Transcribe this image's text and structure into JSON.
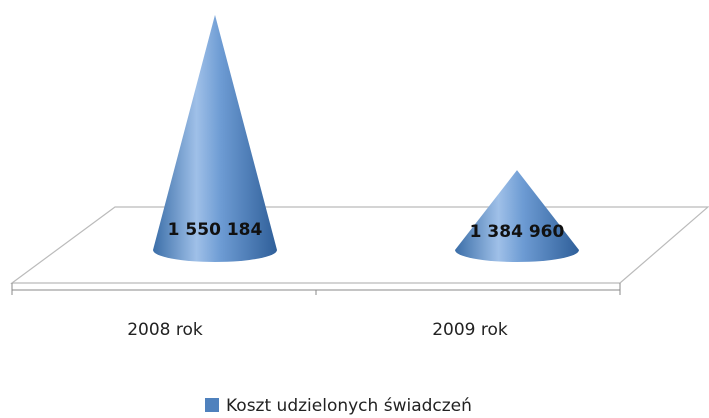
{
  "chart_data": {
    "type": "cone",
    "categories": [
      "2008 rok",
      "2009 rok"
    ],
    "series": [
      {
        "name": "Koszt udzielonych świadczeń",
        "color": "#4f81bd",
        "values": [
          1550184,
          1384960
        ],
        "value_labels": [
          "1 550 184",
          "1 384 960"
        ]
      }
    ],
    "ylim": [
      1300000,
      1600000
    ],
    "legend": "bottom"
  }
}
